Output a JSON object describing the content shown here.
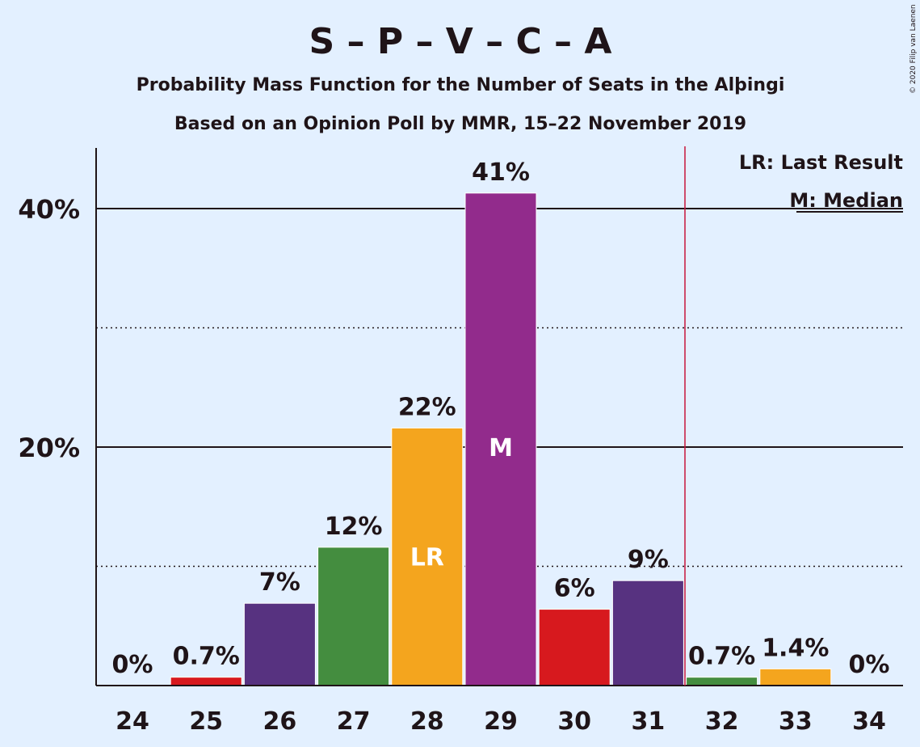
{
  "title": "S – P – V – C – A",
  "subtitle1": "Probability Mass Function for the Number of Seats in the Alþingi",
  "subtitle2": "Based on an Opinion Poll by MMR, 15–22 November 2019",
  "copyright": "© 2020 Filip van Laenen",
  "legend": {
    "last_result": "LR: Last Result",
    "median": "M: Median"
  },
  "chart_data": {
    "type": "bar",
    "xlabel": "",
    "ylabel": "",
    "ylim": [
      0,
      45
    ],
    "yticks": [
      {
        "value": 20,
        "label": "20%"
      },
      {
        "value": 40,
        "label": "40%"
      }
    ],
    "minor_gridlines": [
      10,
      30
    ],
    "categories": [
      "24",
      "25",
      "26",
      "27",
      "28",
      "29",
      "30",
      "31",
      "32",
      "33",
      "34"
    ],
    "values": [
      0,
      0.7,
      6.9,
      11.6,
      21.6,
      41.3,
      6.4,
      8.8,
      0.7,
      1.4,
      0
    ],
    "labels": [
      "0%",
      "0.7%",
      "7%",
      "12%",
      "22%",
      "41%",
      "6%",
      "9%",
      "0.7%",
      "1.4%",
      "0%"
    ],
    "colors": [
      "#1f1418",
      "#D7191E",
      "#573280",
      "#448D3F",
      "#F4A51E",
      "#922B8C",
      "#D7191E",
      "#573280",
      "#448D3F",
      "#F4A51E",
      "#1f1418"
    ],
    "markers": {
      "last_result": {
        "category": "28",
        "text": "LR"
      },
      "median": {
        "category": "29",
        "text": "M"
      }
    },
    "majority_line_after": "31",
    "majority_line_color": "#C8143C",
    "legend_placement": "top-right"
  }
}
